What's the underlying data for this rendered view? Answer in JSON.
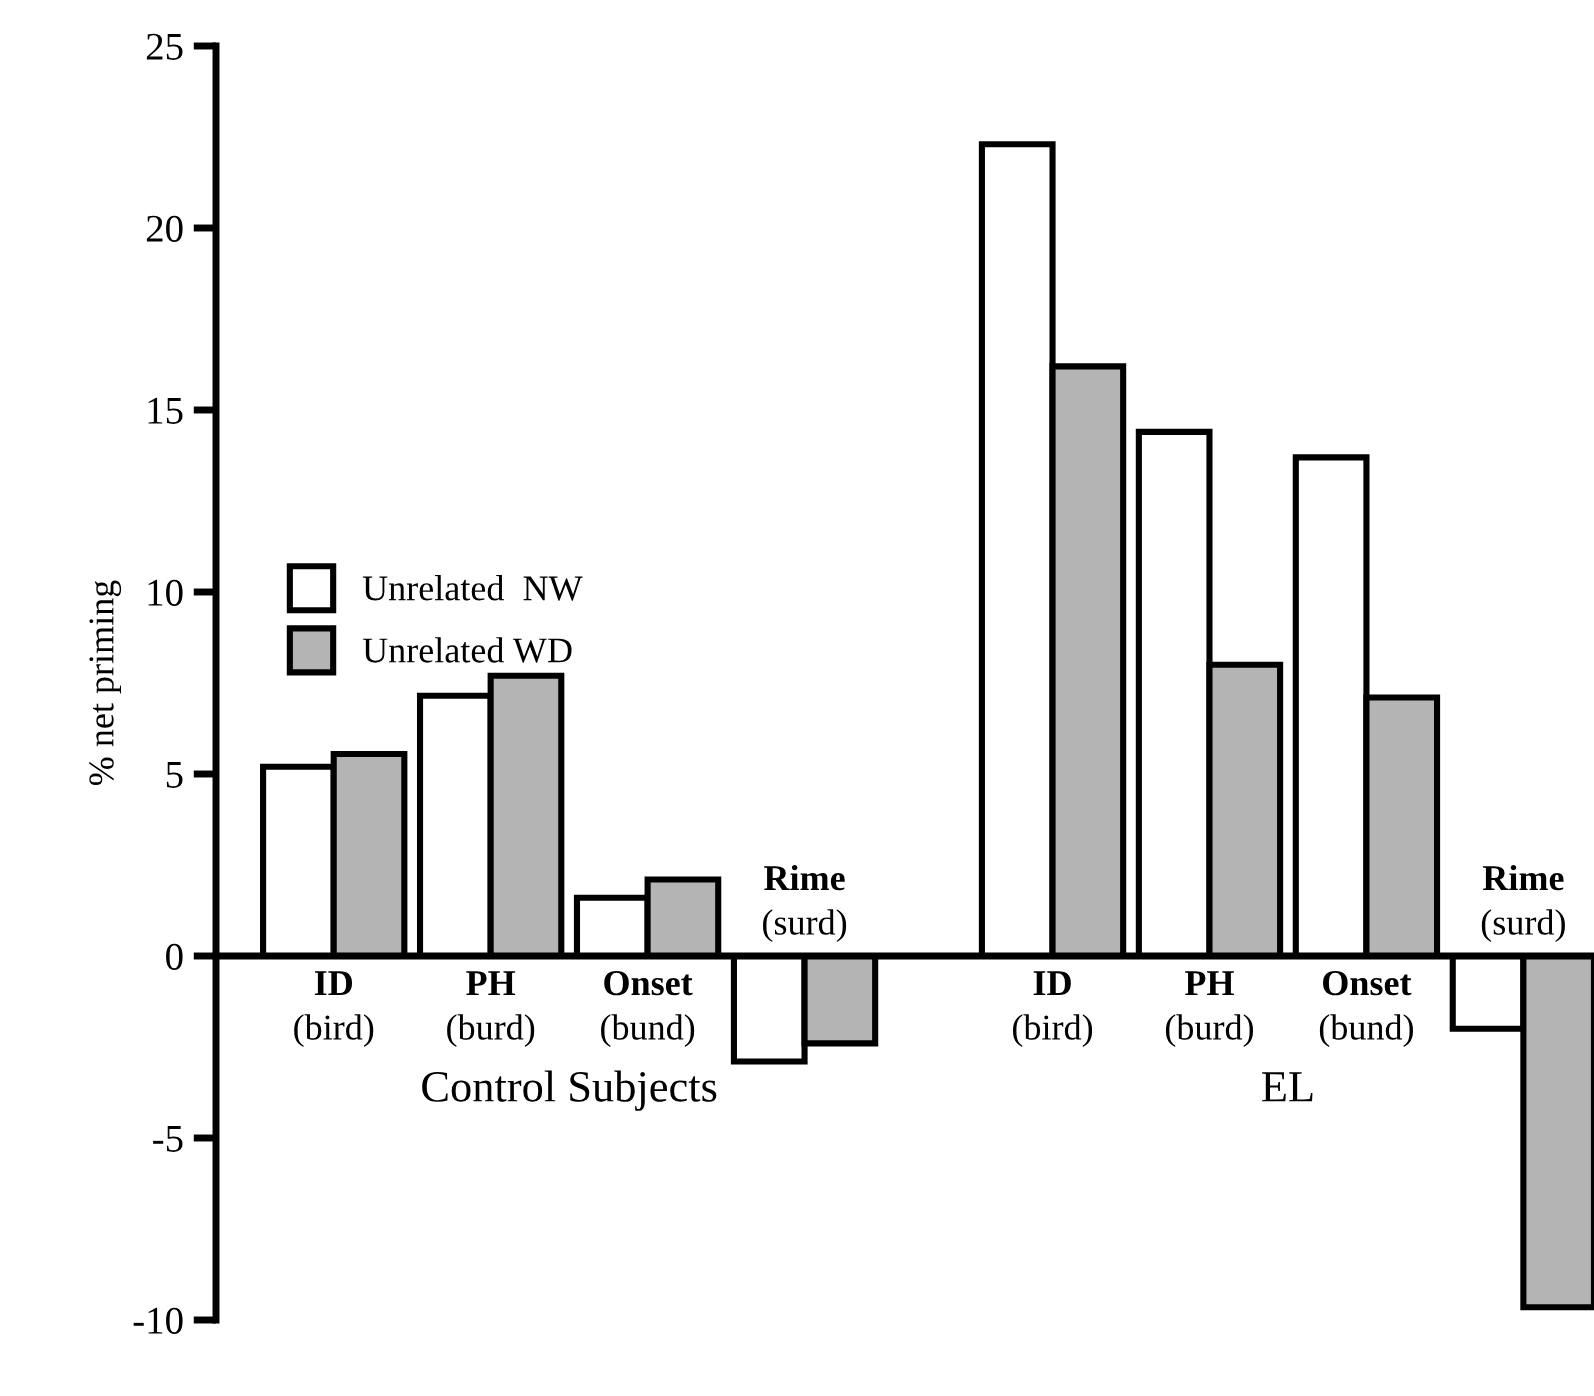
{
  "chart_data": {
    "type": "bar",
    "ylabel": "% net priming",
    "categories": [
      "ID\n(bird)",
      "PH\n(burd)",
      "Onset\n(bund)",
      "Rime\n(surd)",
      "ID\n(bird)",
      "PH\n(burd)",
      "Onset\n(bund)",
      "Rime\n(surd)"
    ],
    "series": [
      {
        "name": "Unrelated  NW",
        "color": "#ffffff",
        "values": [
          5.2,
          7.15,
          1.6,
          -2.9,
          22.3,
          14.4,
          13.7,
          -2.0
        ]
      },
      {
        "name": "Unrelated WD",
        "color": "#b4b4b4",
        "values": [
          5.55,
          7.7,
          2.1,
          -2.4,
          16.2,
          8.0,
          7.1,
          -9.65
        ]
      }
    ],
    "annotations": [
      "Control Subjects",
      "EL"
    ],
    "ylim": [
      -10,
      25
    ],
    "yticks": [
      -10,
      -5,
      0,
      5,
      10,
      15,
      20,
      25
    ],
    "grid": false,
    "legend": "left"
  }
}
